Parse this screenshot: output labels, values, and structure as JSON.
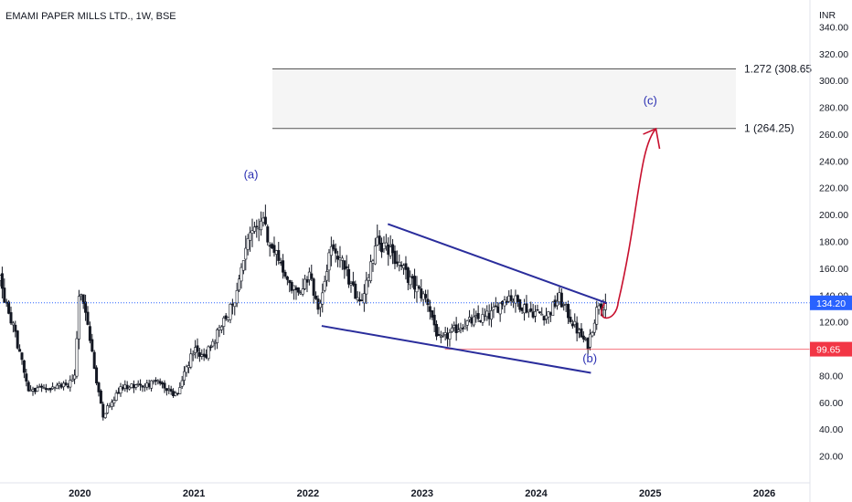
{
  "header": {
    "title": "EMAMI PAPER MILLS LTD., 1W, BSE"
  },
  "colors": {
    "candle": "#131722",
    "channel": "#2a2d9c",
    "wave_label": "#2a2fb2",
    "projection": "#c8102e",
    "support": "#f23645",
    "current_price": "#2962ff",
    "fib_line": "#555555",
    "fib_zone": "#f5f5f5"
  },
  "chart_data": {
    "type": "candlestick",
    "currency": "INR",
    "yaxis": {
      "min": 0,
      "max": 360,
      "ticks": [
        20,
        40,
        60,
        80,
        100,
        120,
        140,
        160,
        180,
        200,
        220,
        240,
        260,
        280,
        300,
        320,
        340
      ],
      "tick_labels": [
        "20.00",
        "40.00",
        "60.00",
        "80.00",
        "100.00",
        "120.00",
        "140.00",
        "160.00",
        "180.00",
        "200.00",
        "220.00",
        "240.00",
        "260.00",
        "280.00",
        "300.00",
        "320.00",
        "340.00"
      ]
    },
    "xaxis": {
      "min": 2019.3,
      "max": 2026.4,
      "ticks": [
        2020,
        2021,
        2022,
        2023,
        2024,
        2025,
        2026
      ],
      "tick_labels": [
        "2020",
        "2021",
        "2022",
        "2023",
        "2024",
        "2025",
        "2026"
      ]
    },
    "key_points": [
      {
        "t": 2019.3,
        "v": 150
      },
      {
        "t": 2019.45,
        "v": 105
      },
      {
        "t": 2019.55,
        "v": 68
      },
      {
        "t": 2019.8,
        "v": 72
      },
      {
        "t": 2019.95,
        "v": 75
      },
      {
        "t": 2020.0,
        "v": 150
      },
      {
        "t": 2020.1,
        "v": 100
      },
      {
        "t": 2020.2,
        "v": 50
      },
      {
        "t": 2020.35,
        "v": 70
      },
      {
        "t": 2020.7,
        "v": 75
      },
      {
        "t": 2020.85,
        "v": 65
      },
      {
        "t": 2021.0,
        "v": 100
      },
      {
        "t": 2021.1,
        "v": 95
      },
      {
        "t": 2021.2,
        "v": 110
      },
      {
        "t": 2021.35,
        "v": 135
      },
      {
        "t": 2021.5,
        "v": 185
      },
      {
        "t": 2021.6,
        "v": 195
      },
      {
        "t": 2021.75,
        "v": 162
      },
      {
        "t": 2021.9,
        "v": 140
      },
      {
        "t": 2022.0,
        "v": 155
      },
      {
        "t": 2022.1,
        "v": 130
      },
      {
        "t": 2022.2,
        "v": 175
      },
      {
        "t": 2022.3,
        "v": 165
      },
      {
        "t": 2022.45,
        "v": 130
      },
      {
        "t": 2022.6,
        "v": 180
      },
      {
        "t": 2022.75,
        "v": 170
      },
      {
        "t": 2022.9,
        "v": 150
      },
      {
        "t": 2023.05,
        "v": 135
      },
      {
        "t": 2023.15,
        "v": 105
      },
      {
        "t": 2023.35,
        "v": 118
      },
      {
        "t": 2023.6,
        "v": 125
      },
      {
        "t": 2023.75,
        "v": 140
      },
      {
        "t": 2023.95,
        "v": 128
      },
      {
        "t": 2024.1,
        "v": 125
      },
      {
        "t": 2024.2,
        "v": 138
      },
      {
        "t": 2024.35,
        "v": 115
      },
      {
        "t": 2024.45,
        "v": 102
      },
      {
        "t": 2024.55,
        "v": 135
      },
      {
        "t": 2024.62,
        "v": 134.2
      }
    ],
    "current_price": 134.2,
    "current_price_label": "134.20",
    "support_level": 99.65,
    "support_label": "99.65",
    "fib_levels": [
      {
        "value": 264.25,
        "label": "1 (264.25)"
      },
      {
        "value": 308.65,
        "label": "1.272 (308.65"
      }
    ],
    "channel": {
      "upper": [
        {
          "t": 2022.7,
          "v": 193
        },
        {
          "t": 2024.62,
          "v": 134
        }
      ],
      "lower": [
        {
          "t": 2022.12,
          "v": 117
        },
        {
          "t": 2024.48,
          "v": 82
        }
      ]
    },
    "wave_labels": [
      {
        "text": "(a)",
        "t": 2021.5,
        "v": 227
      },
      {
        "text": "(b)",
        "t": 2024.47,
        "v": 90
      },
      {
        "text": "(c)",
        "t": 2025.0,
        "v": 282
      }
    ]
  }
}
